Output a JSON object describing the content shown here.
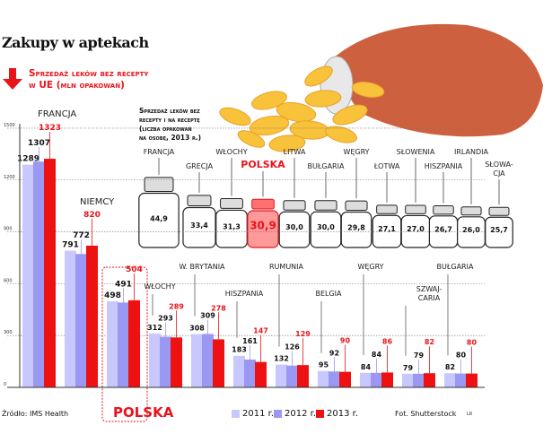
{
  "header": {
    "title": "Zakupy w aptekach",
    "subtitle_line1": "Sprzedaż leków bez recepty",
    "subtitle_line2": "w UE (mln opakowań)"
  },
  "bottles": {
    "caption_lines": [
      "Sprzedaż leków bez",
      "recepty i na receptę",
      "(liczba opakowań",
      "na osobę, 2013 r.)"
    ],
    "items": [
      {
        "country": "FRANCJA",
        "value": "44,9",
        "v": 44.9
      },
      {
        "country": "GRECJA",
        "value": "33,4",
        "v": 33.4
      },
      {
        "country": "WŁOCHY",
        "value": "31,3",
        "v": 31.3
      },
      {
        "country": "POLSKA",
        "value": "30,9",
        "v": 30.9,
        "highlight": true
      },
      {
        "country": "LITWA",
        "value": "30,0",
        "v": 30.0
      },
      {
        "country": "BUŁGARIA",
        "value": "30,0",
        "v": 30.0
      },
      {
        "country": "WĘGRY",
        "value": "29,8",
        "v": 29.8
      },
      {
        "country": "ŁOTWA",
        "value": "27,1",
        "v": 27.1
      },
      {
        "country": "SŁOWENIA",
        "value": "27,0",
        "v": 27.0
      },
      {
        "country": "HISZPANIA",
        "value": "26,7",
        "v": 26.7
      },
      {
        "country": "IRLANDIA",
        "value": "26,0",
        "v": 26.0
      },
      {
        "country": "SŁOWA-|CJA",
        "value": "25,7",
        "v": 25.7
      }
    ]
  },
  "chart_data": {
    "type": "bar",
    "title": "Sprzedaż leków bez recepty w UE (mln opakowań)",
    "categories": [
      "FRANCJA",
      "NIEMCY",
      "POLSKA",
      "WŁOCHY",
      "W. BRYTANIA",
      "HISZPANIA",
      "RUMUNIA",
      "BELGIA",
      "WĘGRY",
      "SZWAJ-|CARIA",
      "BUŁGARIA"
    ],
    "series": [
      {
        "name": "2011 r.",
        "color": "#c8c8ff",
        "values": [
          1289,
          791,
          498,
          312,
          308,
          183,
          132,
          95,
          84,
          79,
          82
        ]
      },
      {
        "name": "2012 r.",
        "color": "#9a98f2",
        "values": [
          1307,
          772,
          491,
          293,
          309,
          161,
          126,
          92,
          84,
          79,
          80
        ]
      },
      {
        "name": "2013 r.",
        "color": "#ee1111",
        "values": [
          1323,
          820,
          504,
          289,
          278,
          147,
          129,
          90,
          86,
          82,
          80
        ]
      }
    ],
    "yticks": [
      0,
      300,
      600,
      900,
      1200,
      1500
    ],
    "ylim": [
      0,
      1500
    ],
    "grid": true,
    "highlight": "POLSKA",
    "legend": "bottom"
  },
  "footer": {
    "source": "Źródło:  IMS Health",
    "photo": "Fot. Shutterstock",
    "author": "LR",
    "polska_label": "POLSKA"
  },
  "colors": {
    "accent": "#e8141b",
    "y2011": "#c8c8ff",
    "y2012": "#9a98f2",
    "y2013": "#ee1111"
  }
}
